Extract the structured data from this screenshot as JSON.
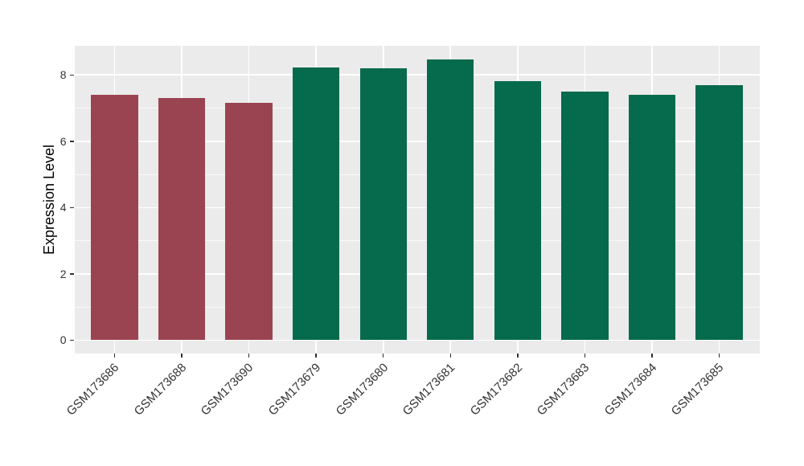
{
  "figure": {
    "background": "#ffffff",
    "panel_background": "#ebebeb",
    "gridline_color": "#ffffff",
    "axis_text_color": "#333333",
    "axis_title_color": "#000000",
    "tick_mark_color": "#333333"
  },
  "chart_data": {
    "type": "bar",
    "title": "",
    "xlabel": "",
    "ylabel": "Expression Level",
    "categories": [
      "GSM173686",
      "GSM173688",
      "GSM173690",
      "GSM173679",
      "GSM173680",
      "GSM173681",
      "GSM173682",
      "GSM173683",
      "GSM173684",
      "GSM173685"
    ],
    "values": [
      7.39,
      7.3,
      7.16,
      8.23,
      8.21,
      8.46,
      7.81,
      7.5,
      7.4,
      7.69
    ],
    "bar_colors": [
      "#9b4451",
      "#9b4451",
      "#9b4451",
      "#066a4c",
      "#066a4c",
      "#066a4c",
      "#066a4c",
      "#066a4c",
      "#066a4c",
      "#066a4c"
    ],
    "group_colors": {
      "red_group": "#9b4451",
      "green_group": "#066a4c"
    },
    "y_ticks": [
      0,
      2,
      4,
      6,
      8
    ],
    "y_minor_ticks": [
      1,
      3,
      5,
      7
    ],
    "ylim": [
      -0.4,
      8.88
    ],
    "grid": true,
    "legend": false,
    "x_label_rotation_deg": 45,
    "bar_width_frac": 0.7
  }
}
